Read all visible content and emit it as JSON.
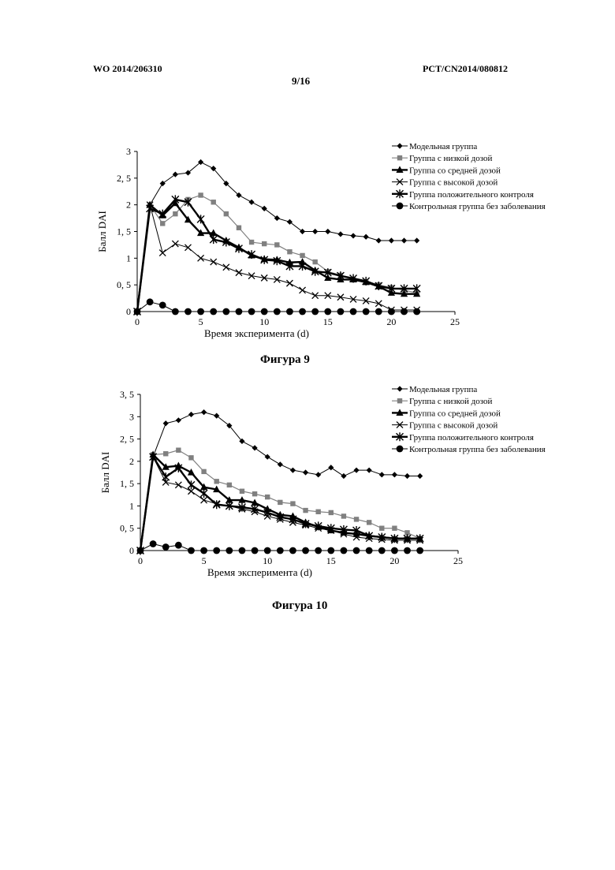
{
  "page": {
    "header_left": "WO 2014/206310",
    "header_right": "PCT/CN2014/080812",
    "page_number": "9/16"
  },
  "figures": [
    {
      "caption": "Фигура 9"
    },
    {
      "caption": "Фигура 10"
    }
  ],
  "chart_data": [
    {
      "type": "line",
      "title": "",
      "xlabel": "Время эксперимента (d)",
      "ylabel": "Балл DAI",
      "xlim": [
        0,
        25
      ],
      "ylim": [
        0,
        3
      ],
      "xticks": [
        "0",
        "5",
        "10",
        "15",
        "20",
        "25"
      ],
      "yticks": [
        "0",
        "0, 5",
        "1",
        "1, 5",
        "2",
        "2, 5",
        "3"
      ],
      "grid": false,
      "legend_position": "top-right",
      "series": [
        {
          "name": "Модельная группа",
          "marker": "diamond",
          "color": "#000000",
          "stroke_width": 1,
          "x": [
            0,
            1,
            2,
            3,
            4,
            5,
            6,
            7,
            8,
            9,
            10,
            11,
            12,
            13,
            14,
            15,
            16,
            17,
            18,
            19,
            20,
            21,
            22
          ],
          "y": [
            0,
            2.0,
            2.4,
            2.57,
            2.6,
            2.8,
            2.68,
            2.4,
            2.18,
            2.05,
            1.93,
            1.75,
            1.68,
            1.5,
            1.5,
            1.5,
            1.45,
            1.42,
            1.4,
            1.33,
            1.33,
            1.33,
            1.33
          ]
        },
        {
          "name": "Группа с низкой дозой",
          "marker": "square",
          "color": "#808080",
          "stroke_width": 1.2,
          "x": [
            0,
            1,
            2,
            3,
            4,
            5,
            6,
            7,
            8,
            9,
            10,
            11,
            12,
            13,
            14,
            15,
            16,
            17,
            18,
            19,
            20,
            21,
            22
          ],
          "y": [
            0,
            2.0,
            1.65,
            1.83,
            2.1,
            2.18,
            2.05,
            1.83,
            1.57,
            1.3,
            1.27,
            1.25,
            1.12,
            1.05,
            0.93,
            0.75,
            0.68,
            0.6,
            0.56,
            0.5,
            0.45,
            0.4,
            0.35
          ]
        },
        {
          "name": "Группа со средней дозой",
          "marker": "triangle",
          "color": "#000000",
          "stroke_width": 2.4,
          "x": [
            0,
            1,
            2,
            3,
            4,
            5,
            6,
            7,
            8,
            9,
            10,
            11,
            12,
            13,
            14,
            15,
            16,
            17,
            18,
            19,
            20,
            21,
            22
          ],
          "y": [
            0,
            2.0,
            1.8,
            2.03,
            1.72,
            1.47,
            1.47,
            1.33,
            1.2,
            1.05,
            0.98,
            0.97,
            0.92,
            0.93,
            0.77,
            0.63,
            0.6,
            0.6,
            0.55,
            0.47,
            0.35,
            0.33,
            0.33
          ]
        },
        {
          "name": "Группа с высокой дозой",
          "marker": "x",
          "color": "#000000",
          "stroke_width": 1,
          "x": [
            0,
            1,
            2,
            3,
            4,
            5,
            6,
            7,
            8,
            9,
            10,
            11,
            12,
            13,
            14,
            15,
            16,
            17,
            18,
            19,
            20,
            21,
            22
          ],
          "y": [
            0,
            2.0,
            1.1,
            1.27,
            1.2,
            1.0,
            0.93,
            0.83,
            0.73,
            0.67,
            0.63,
            0.6,
            0.53,
            0.4,
            0.3,
            0.3,
            0.27,
            0.23,
            0.2,
            0.15,
            0.03,
            0.03,
            0.03
          ]
        },
        {
          "name": "Группа положительного контроля",
          "marker": "star",
          "color": "#000000",
          "stroke_width": 2.4,
          "x": [
            0,
            1,
            2,
            3,
            4,
            5,
            6,
            7,
            8,
            9,
            10,
            11,
            12,
            13,
            14,
            15,
            16,
            17,
            18,
            19,
            20,
            21,
            22
          ],
          "y": [
            0,
            1.93,
            1.83,
            2.1,
            2.05,
            1.73,
            1.35,
            1.3,
            1.18,
            1.07,
            0.97,
            0.95,
            0.85,
            0.85,
            0.75,
            0.73,
            0.67,
            0.62,
            0.57,
            0.48,
            0.43,
            0.43,
            0.43
          ]
        },
        {
          "name": "Контрольная группа без заболевания",
          "marker": "circle",
          "color": "#000000",
          "stroke_width": 1,
          "x": [
            0,
            1,
            2,
            3,
            4,
            5,
            6,
            7,
            8,
            9,
            10,
            11,
            12,
            13,
            14,
            15,
            16,
            17,
            18,
            19,
            20,
            21,
            22
          ],
          "y": [
            0,
            0.18,
            0.12,
            0,
            0,
            0,
            0,
            0,
            0,
            0,
            0,
            0,
            0,
            0,
            0,
            0,
            0,
            0,
            0,
            0,
            0,
            0,
            0
          ]
        }
      ]
    },
    {
      "type": "line",
      "title": "",
      "xlabel": "Время эксперимента (d)",
      "ylabel": "Балл DAI",
      "xlim": [
        0,
        25
      ],
      "ylim": [
        0,
        3.5
      ],
      "xticks": [
        "0",
        "5",
        "10",
        "15",
        "20",
        "25"
      ],
      "yticks": [
        "0",
        "0, 5",
        "1",
        "1, 5",
        "2",
        "2, 5",
        "3",
        "3, 5"
      ],
      "grid": false,
      "legend_position": "top-right",
      "series": [
        {
          "name": "Модельная группа",
          "marker": "diamond",
          "color": "#000000",
          "stroke_width": 1,
          "x": [
            0,
            1,
            2,
            3,
            4,
            5,
            6,
            7,
            8,
            9,
            10,
            11,
            12,
            13,
            14,
            15,
            16,
            17,
            18,
            19,
            20,
            21,
            22
          ],
          "y": [
            0,
            2.1,
            2.85,
            2.92,
            3.05,
            3.1,
            3.02,
            2.8,
            2.45,
            2.3,
            2.1,
            1.93,
            1.8,
            1.75,
            1.7,
            1.86,
            1.67,
            1.8,
            1.8,
            1.7,
            1.7,
            1.67,
            1.67
          ]
        },
        {
          "name": "Группа с низкой дозой",
          "marker": "square",
          "color": "#808080",
          "stroke_width": 1.2,
          "x": [
            0,
            1,
            2,
            3,
            4,
            5,
            6,
            7,
            8,
            9,
            10,
            11,
            12,
            13,
            14,
            15,
            16,
            17,
            18,
            19,
            20,
            21,
            22
          ],
          "y": [
            0,
            2.15,
            2.17,
            2.25,
            2.08,
            1.77,
            1.55,
            1.47,
            1.33,
            1.27,
            1.2,
            1.08,
            1.05,
            0.9,
            0.87,
            0.85,
            0.77,
            0.7,
            0.63,
            0.5,
            0.5,
            0.4,
            0.27
          ]
        },
        {
          "name": "Группа со средней дозой",
          "marker": "triangle",
          "color": "#000000",
          "stroke_width": 2.4,
          "x": [
            0,
            1,
            2,
            3,
            4,
            5,
            6,
            7,
            8,
            9,
            10,
            11,
            12,
            13,
            14,
            15,
            16,
            17,
            18,
            19,
            20,
            21,
            22
          ],
          "y": [
            0,
            2.15,
            1.87,
            1.9,
            1.75,
            1.42,
            1.37,
            1.13,
            1.13,
            1.07,
            0.93,
            0.8,
            0.77,
            0.63,
            0.53,
            0.45,
            0.4,
            0.37,
            0.33,
            0.3,
            0.27,
            0.27,
            0.27
          ]
        },
        {
          "name": "Группа с высокой дозой",
          "marker": "x",
          "color": "#000000",
          "stroke_width": 1,
          "x": [
            0,
            1,
            2,
            3,
            4,
            5,
            6,
            7,
            8,
            9,
            10,
            11,
            12,
            13,
            14,
            15,
            16,
            17,
            18,
            19,
            20,
            21,
            22
          ],
          "y": [
            0,
            2.1,
            1.53,
            1.47,
            1.33,
            1.13,
            1.05,
            1.0,
            0.93,
            0.87,
            0.77,
            0.7,
            0.63,
            0.57,
            0.5,
            0.45,
            0.37,
            0.3,
            0.27,
            0.25,
            0.23,
            0.23,
            0.23
          ]
        },
        {
          "name": "Группа положительного контроля",
          "marker": "star",
          "color": "#000000",
          "stroke_width": 2.4,
          "x": [
            0,
            1,
            2,
            3,
            4,
            5,
            6,
            7,
            8,
            9,
            10,
            11,
            12,
            13,
            14,
            15,
            16,
            17,
            18,
            19,
            20,
            21,
            22
          ],
          "y": [
            0,
            2.1,
            1.65,
            1.85,
            1.47,
            1.28,
            1.03,
            1.0,
            0.97,
            0.93,
            0.85,
            0.75,
            0.7,
            0.6,
            0.55,
            0.5,
            0.47,
            0.45,
            0.33,
            0.3,
            0.27,
            0.27,
            0.27
          ]
        },
        {
          "name": "Контрольная группа без заболевания",
          "marker": "circle",
          "color": "#000000",
          "stroke_width": 1,
          "x": [
            0,
            1,
            2,
            3,
            4,
            5,
            6,
            7,
            8,
            9,
            10,
            11,
            12,
            13,
            14,
            15,
            16,
            17,
            18,
            19,
            20,
            21,
            22
          ],
          "y": [
            0,
            0.15,
            0.08,
            0.12,
            0,
            0,
            0,
            0,
            0,
            0,
            0,
            0,
            0,
            0,
            0,
            0,
            0,
            0,
            0,
            0,
            0,
            0,
            0
          ]
        }
      ]
    }
  ]
}
